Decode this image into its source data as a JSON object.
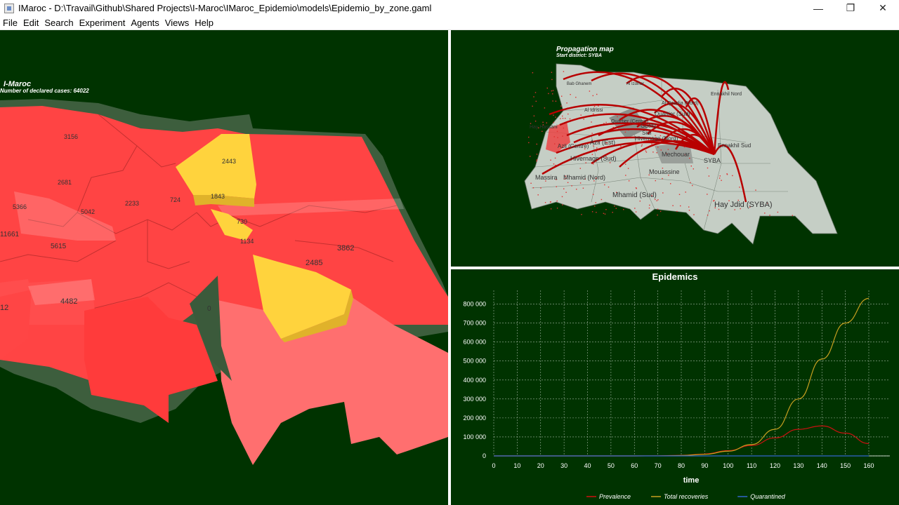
{
  "window": {
    "title": "IMaroc - D:\\Travail\\Github\\Shared Projects\\I-Maroc\\IMaroc_Epidemio\\models\\Epidemio_by_zone.gaml",
    "minimize_glyph": "—",
    "maximize_glyph": "❐",
    "close_glyph": "✕"
  },
  "menu": [
    "File",
    "Edit",
    "Search",
    "Experiment",
    "Agents",
    "Views",
    "Help"
  ],
  "main_view": {
    "title": "I-Maroc",
    "subtitle": "Number of declared cases: 64022",
    "zone_labels": [
      "3156",
      "2681",
      "5366",
      "5042",
      "2233",
      "724",
      "2443",
      "1843",
      "11661",
      "5615",
      "730",
      "1134",
      "3862",
      "2485",
      "4482",
      "12",
      "0"
    ]
  },
  "propagation_view": {
    "title": "Propagation map",
    "subtitle": "Start district: SYBA",
    "district_labels": [
      "Bab Ghanem",
      "Al Izdihar",
      "Ennakhil Nord",
      "Al Qoudia (Nord)",
      "Al Idrissi",
      "Quartier (Sud)",
      "Hay Hassani",
      "Quartier (Centre)",
      "Guéliz",
      "Sidi",
      "Hivernage (Nord)",
      "Azli (Centre)",
      "Azli (Est)",
      "Ennakhil Sud",
      "Mechouar",
      "SYBA",
      "Hivernage (Sud)",
      "Massira",
      "Mhamid (Nord)",
      "Mouassine",
      "Mhamid (Sud)",
      "Hay Jdid (SYBA)"
    ]
  },
  "chart_data": {
    "type": "line",
    "title": "Epidemics",
    "xlabel": "time",
    "ylabel": "",
    "xlim": [
      0,
      160
    ],
    "ylim": [
      0,
      850000
    ],
    "x_ticks": [
      "0",
      "10",
      "20",
      "30",
      "40",
      "50",
      "60",
      "70",
      "80",
      "90",
      "100",
      "110",
      "120",
      "130",
      "140",
      "150",
      "160"
    ],
    "y_ticks": [
      "0",
      "100 000",
      "200 000",
      "300 000",
      "400 000",
      "500 000",
      "600 000",
      "700 000",
      "800 000"
    ],
    "grid": true,
    "legend_position": "bottom",
    "x": [
      0,
      10,
      20,
      30,
      40,
      50,
      60,
      70,
      80,
      90,
      100,
      110,
      120,
      130,
      140,
      150,
      160
    ],
    "series": [
      {
        "name": "Prevalence",
        "color": "#cc1111",
        "values": [
          0,
          0,
          0,
          0,
          0,
          0,
          0,
          500,
          3000,
          10000,
          28000,
          55000,
          95000,
          140000,
          158000,
          120000,
          65000
        ]
      },
      {
        "name": "Total recoveries",
        "color": "#c8a020",
        "values": [
          0,
          0,
          0,
          0,
          0,
          0,
          0,
          300,
          2000,
          8000,
          25000,
          60000,
          140000,
          300000,
          510000,
          700000,
          830000
        ]
      },
      {
        "name": "Quarantined",
        "color": "#3366cc",
        "values": [
          0,
          0,
          0,
          0,
          0,
          0,
          0,
          0,
          0,
          0,
          0,
          0,
          0,
          0,
          0,
          0,
          0
        ]
      }
    ]
  }
}
